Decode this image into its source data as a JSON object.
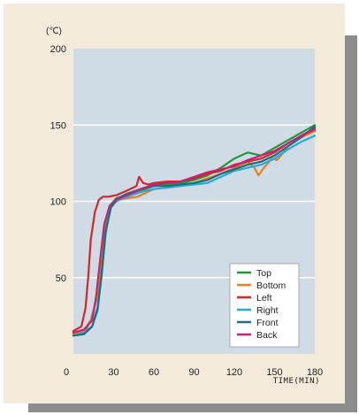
{
  "chart_data": {
    "type": "line",
    "y_unit": "(℃)",
    "xlabel": "TIME(MIN)",
    "xlim": [
      0,
      180
    ],
    "ylim": [
      0,
      200
    ],
    "x_ticks": [
      0,
      30,
      60,
      90,
      120,
      150,
      180
    ],
    "y_ticks": [
      50,
      100,
      150,
      200
    ],
    "grid": true,
    "legend_position": "bottom-right",
    "series": [
      {
        "name": "Top",
        "color": "#1f9a3a",
        "points": [
          [
            0,
            12
          ],
          [
            8,
            14
          ],
          [
            13,
            22
          ],
          [
            17,
            35
          ],
          [
            20,
            55
          ],
          [
            23,
            80
          ],
          [
            27,
            97
          ],
          [
            32,
            102
          ],
          [
            40,
            104
          ],
          [
            50,
            107
          ],
          [
            60,
            110
          ],
          [
            70,
            111
          ],
          [
            80,
            112
          ],
          [
            90,
            114
          ],
          [
            100,
            117
          ],
          [
            110,
            122
          ],
          [
            120,
            128
          ],
          [
            130,
            132
          ],
          [
            140,
            130
          ],
          [
            150,
            135
          ],
          [
            160,
            140
          ],
          [
            170,
            145
          ],
          [
            180,
            150
          ]
        ]
      },
      {
        "name": "Bottom",
        "color": "#ef7d1a",
        "points": [
          [
            0,
            13
          ],
          [
            8,
            15
          ],
          [
            14,
            24
          ],
          [
            18,
            40
          ],
          [
            21,
            60
          ],
          [
            24,
            82
          ],
          [
            28,
            98
          ],
          [
            34,
            101
          ],
          [
            40,
            102
          ],
          [
            48,
            103
          ],
          [
            55,
            106
          ],
          [
            60,
            108
          ],
          [
            70,
            109
          ],
          [
            80,
            110
          ],
          [
            90,
            112
          ],
          [
            100,
            115
          ],
          [
            110,
            118
          ],
          [
            120,
            122
          ],
          [
            130,
            126
          ],
          [
            135,
            122
          ],
          [
            138,
            117
          ],
          [
            142,
            122
          ],
          [
            148,
            128
          ],
          [
            152,
            127
          ],
          [
            160,
            136
          ],
          [
            170,
            142
          ],
          [
            180,
            146
          ]
        ]
      },
      {
        "name": "Left",
        "color": "#d42727",
        "points": [
          [
            0,
            15
          ],
          [
            6,
            18
          ],
          [
            9,
            30
          ],
          [
            11,
            50
          ],
          [
            13,
            75
          ],
          [
            16,
            93
          ],
          [
            19,
            101
          ],
          [
            22,
            103
          ],
          [
            26,
            103
          ],
          [
            32,
            104
          ],
          [
            40,
            107
          ],
          [
            47,
            110
          ],
          [
            49,
            116
          ],
          [
            52,
            112
          ],
          [
            56,
            111
          ],
          [
            60,
            112
          ],
          [
            70,
            113
          ],
          [
            80,
            113
          ],
          [
            90,
            115
          ],
          [
            100,
            118
          ],
          [
            110,
            120
          ],
          [
            120,
            124
          ],
          [
            130,
            126
          ],
          [
            140,
            128
          ],
          [
            150,
            132
          ],
          [
            160,
            138
          ],
          [
            170,
            143
          ],
          [
            180,
            148
          ]
        ]
      },
      {
        "name": "Right",
        "color": "#29a8df",
        "points": [
          [
            0,
            12
          ],
          [
            8,
            14
          ],
          [
            14,
            18
          ],
          [
            18,
            28
          ],
          [
            21,
            50
          ],
          [
            24,
            78
          ],
          [
            27,
            95
          ],
          [
            32,
            100
          ],
          [
            40,
            103
          ],
          [
            50,
            106
          ],
          [
            60,
            108
          ],
          [
            70,
            109
          ],
          [
            80,
            110
          ],
          [
            90,
            111
          ],
          [
            100,
            112
          ],
          [
            110,
            116
          ],
          [
            120,
            120
          ],
          [
            130,
            122
          ],
          [
            140,
            124
          ],
          [
            150,
            128
          ],
          [
            160,
            134
          ],
          [
            170,
            139
          ],
          [
            180,
            143
          ]
        ]
      },
      {
        "name": "Front",
        "color": "#1a6f7a",
        "points": [
          [
            0,
            12
          ],
          [
            8,
            13
          ],
          [
            14,
            18
          ],
          [
            18,
            30
          ],
          [
            21,
            52
          ],
          [
            24,
            80
          ],
          [
            28,
            96
          ],
          [
            33,
            102
          ],
          [
            40,
            105
          ],
          [
            50,
            108
          ],
          [
            60,
            110
          ],
          [
            70,
            110
          ],
          [
            80,
            111
          ],
          [
            90,
            112
          ],
          [
            100,
            114
          ],
          [
            110,
            118
          ],
          [
            120,
            121
          ],
          [
            130,
            124
          ],
          [
            140,
            126
          ],
          [
            150,
            130
          ],
          [
            160,
            136
          ],
          [
            170,
            142
          ],
          [
            180,
            149
          ]
        ]
      },
      {
        "name": "Back",
        "color": "#c81f7a",
        "points": [
          [
            0,
            14
          ],
          [
            8,
            16
          ],
          [
            14,
            22
          ],
          [
            17,
            38
          ],
          [
            20,
            62
          ],
          [
            23,
            85
          ],
          [
            27,
            97
          ],
          [
            32,
            101
          ],
          [
            40,
            104
          ],
          [
            50,
            108
          ],
          [
            60,
            111
          ],
          [
            70,
            112
          ],
          [
            80,
            113
          ],
          [
            90,
            116
          ],
          [
            100,
            119
          ],
          [
            110,
            121
          ],
          [
            120,
            123
          ],
          [
            130,
            127
          ],
          [
            140,
            130
          ],
          [
            150,
            133
          ],
          [
            160,
            138
          ],
          [
            170,
            143
          ],
          [
            180,
            147
          ]
        ]
      }
    ]
  }
}
